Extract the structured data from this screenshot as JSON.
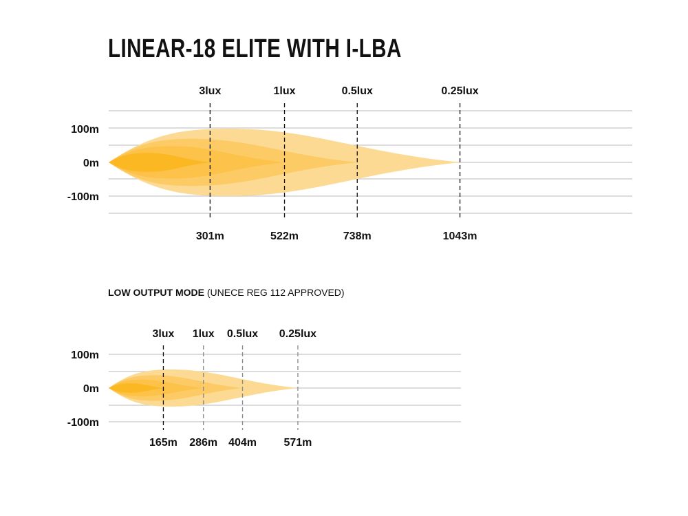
{
  "title": "LINEAR-18 ELITE WITH I-LBA",
  "subtitle_bold": "LOW OUTPUT MODE",
  "subtitle_rest": " (UNECE REG 112 APPROVED)",
  "colors": {
    "contour_025": "#fdda93",
    "contour_05": "#fccb66",
    "contour_1": "#fcc24a",
    "contour_3": "#fbb822",
    "grid": "#c8c8c8",
    "marker": "#111111",
    "marker_secondary": "#8a8a8a"
  },
  "chart_data": [
    {
      "type": "area",
      "name": "high",
      "ylabels": [
        "100m",
        "0m",
        "-100m"
      ],
      "yticks": [
        100,
        0,
        -100
      ],
      "ylim": [
        -150,
        150
      ],
      "xlim": [
        0,
        1550
      ],
      "grid": true,
      "contours": [
        {
          "lux_label": "0.25lux",
          "distance_label": "1043m",
          "distance": 1043,
          "max_half_width": 100,
          "peak_at": 360
        },
        {
          "lux_label": "0.5lux",
          "distance_label": "738m",
          "distance": 738,
          "max_half_width": 70,
          "peak_at": 250
        },
        {
          "lux_label": "1lux",
          "distance_label": "522m",
          "distance": 522,
          "max_half_width": 48,
          "peak_at": 190
        },
        {
          "lux_label": "3lux",
          "distance_label": "301m",
          "distance": 301,
          "max_half_width": 28,
          "peak_at": 120
        }
      ]
    },
    {
      "type": "area",
      "name": "low",
      "ylabels": [
        "100m",
        "0m",
        "-100m"
      ],
      "yticks": [
        100,
        0,
        -100
      ],
      "ylim": [
        -100,
        100
      ],
      "xlim": [
        0,
        1060
      ],
      "grid": true,
      "contours": [
        {
          "lux_label": "0.25lux",
          "distance_label": "571m",
          "distance": 571,
          "max_half_width": 55,
          "peak_at": 190
        },
        {
          "lux_label": "0.5lux",
          "distance_label": "404m",
          "distance": 404,
          "max_half_width": 38,
          "peak_at": 140
        },
        {
          "lux_label": "1lux",
          "distance_label": "286m",
          "distance": 286,
          "max_half_width": 25,
          "peak_at": 100
        },
        {
          "lux_label": "3lux",
          "distance_label": "165m",
          "distance": 165,
          "max_half_width": 14,
          "peak_at": 70
        }
      ]
    }
  ]
}
